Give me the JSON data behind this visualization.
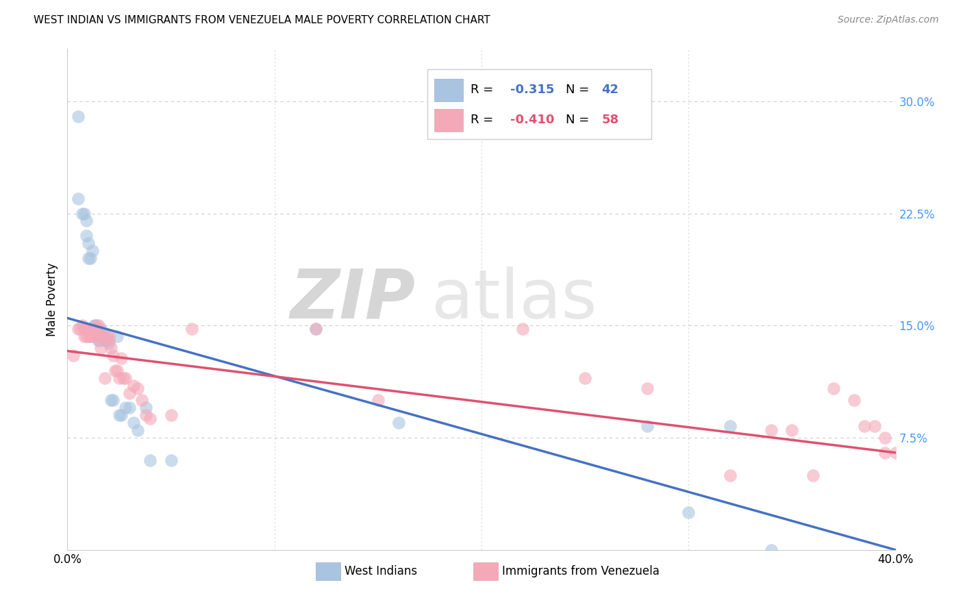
{
  "title": "WEST INDIAN VS IMMIGRANTS FROM VENEZUELA MALE POVERTY CORRELATION CHART",
  "source": "Source: ZipAtlas.com",
  "ylabel": "Male Poverty",
  "ytick_values": [
    0.075,
    0.15,
    0.225,
    0.3
  ],
  "ytick_labels": [
    "7.5%",
    "15.0%",
    "22.5%",
    "30.0%"
  ],
  "xtick_vals": [
    0.0,
    0.1,
    0.2,
    0.3,
    0.4
  ],
  "xtick_labels": [
    "0.0%",
    "",
    "",
    "",
    "40.0%"
  ],
  "xlim": [
    0,
    0.4
  ],
  "ylim": [
    0,
    0.335
  ],
  "legend_blue_label": "West Indians",
  "legend_pink_label": "Immigrants from Venezuela",
  "blue_color": "#A8C4E0",
  "pink_color": "#F4A8B8",
  "blue_line_color": "#4472C4",
  "pink_line_color": "#E05070",
  "watermark_zip": "ZIP",
  "watermark_atlas": "atlas",
  "blue_x": [
    0.005,
    0.005,
    0.007,
    0.008,
    0.009,
    0.009,
    0.01,
    0.01,
    0.011,
    0.012,
    0.013,
    0.013,
    0.013,
    0.014,
    0.014,
    0.015,
    0.015,
    0.015,
    0.016,
    0.017,
    0.018,
    0.018,
    0.019,
    0.02,
    0.021,
    0.022,
    0.024,
    0.025,
    0.026,
    0.028,
    0.03,
    0.032,
    0.034,
    0.038,
    0.04,
    0.05,
    0.12,
    0.16,
    0.28,
    0.3,
    0.32,
    0.34
  ],
  "blue_y": [
    0.29,
    0.235,
    0.225,
    0.225,
    0.22,
    0.21,
    0.195,
    0.205,
    0.195,
    0.2,
    0.15,
    0.15,
    0.148,
    0.148,
    0.145,
    0.145,
    0.14,
    0.14,
    0.148,
    0.143,
    0.14,
    0.143,
    0.14,
    0.138,
    0.1,
    0.1,
    0.143,
    0.09,
    0.09,
    0.095,
    0.095,
    0.085,
    0.08,
    0.095,
    0.06,
    0.06,
    0.148,
    0.085,
    0.083,
    0.025,
    0.083,
    0.0
  ],
  "pink_x": [
    0.003,
    0.005,
    0.006,
    0.007,
    0.008,
    0.008,
    0.009,
    0.009,
    0.01,
    0.01,
    0.011,
    0.012,
    0.012,
    0.013,
    0.013,
    0.014,
    0.014,
    0.015,
    0.015,
    0.016,
    0.016,
    0.017,
    0.018,
    0.019,
    0.02,
    0.02,
    0.021,
    0.022,
    0.023,
    0.024,
    0.025,
    0.026,
    0.027,
    0.028,
    0.03,
    0.032,
    0.034,
    0.036,
    0.038,
    0.04,
    0.05,
    0.06,
    0.12,
    0.15,
    0.22,
    0.25,
    0.28,
    0.32,
    0.34,
    0.35,
    0.36,
    0.37,
    0.38,
    0.385,
    0.39,
    0.395,
    0.395,
    0.4
  ],
  "pink_y": [
    0.13,
    0.148,
    0.148,
    0.15,
    0.148,
    0.143,
    0.148,
    0.143,
    0.148,
    0.143,
    0.143,
    0.148,
    0.143,
    0.148,
    0.143,
    0.15,
    0.143,
    0.15,
    0.143,
    0.143,
    0.135,
    0.143,
    0.115,
    0.143,
    0.143,
    0.14,
    0.135,
    0.13,
    0.12,
    0.12,
    0.115,
    0.128,
    0.115,
    0.115,
    0.105,
    0.11,
    0.108,
    0.1,
    0.09,
    0.088,
    0.09,
    0.148,
    0.148,
    0.1,
    0.148,
    0.115,
    0.108,
    0.05,
    0.08,
    0.08,
    0.05,
    0.108,
    0.1,
    0.083,
    0.083,
    0.065,
    0.075,
    0.065
  ]
}
